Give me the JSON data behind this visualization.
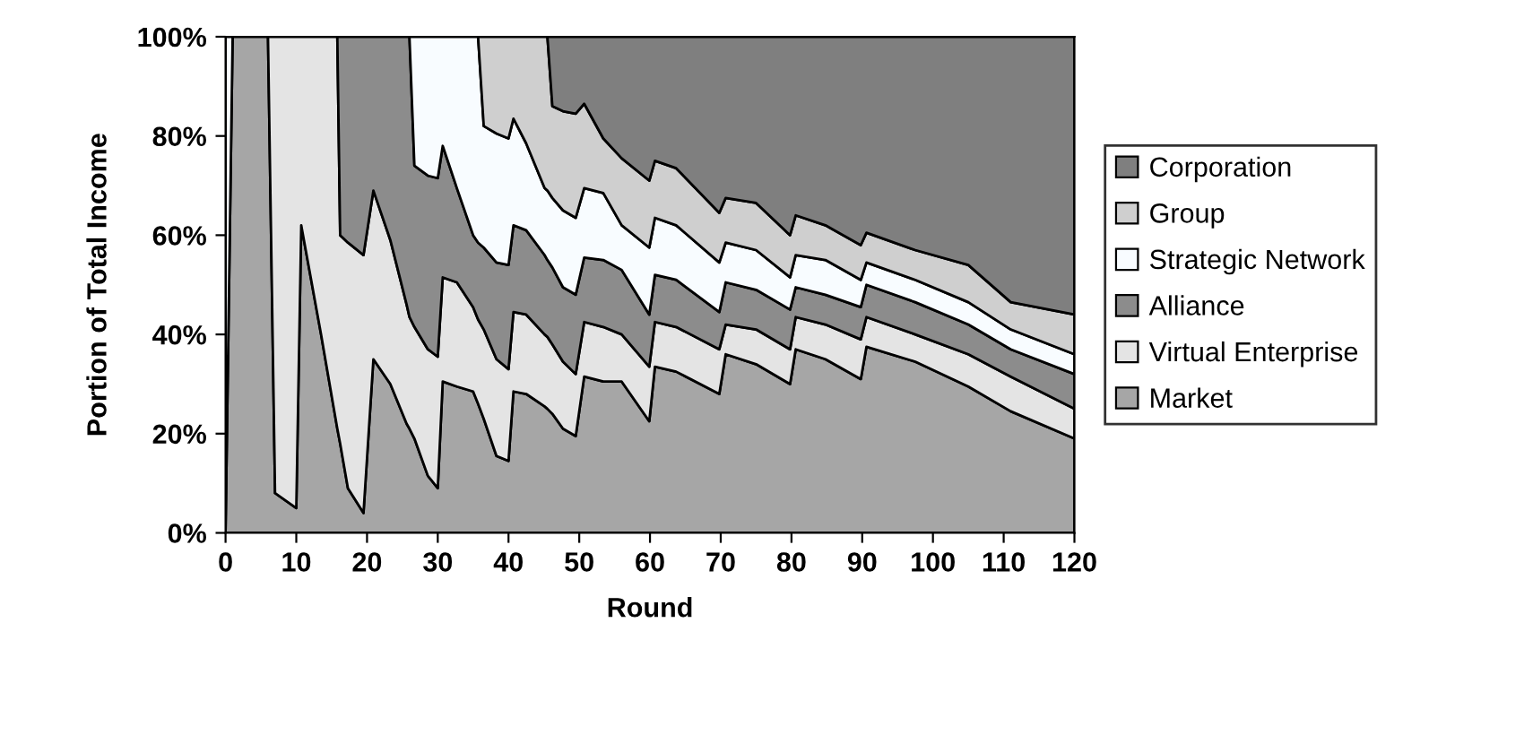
{
  "chart_data": {
    "type": "area",
    "stacked": true,
    "xlabel": "Round",
    "ylabel": "Portion of Total Income",
    "x": [
      0,
      1,
      6,
      7,
      10,
      10.7,
      13.5,
      15.8,
      16.2,
      17.3,
      19.5,
      20.9,
      23.3,
      25.6,
      26,
      26.7,
      28.6,
      30,
      30.7,
      32.7,
      35,
      35.7,
      36.5,
      38.3,
      40,
      40.7,
      42.5,
      45.1,
      45.5,
      46.2,
      47.7,
      49.5,
      50.7,
      53.4,
      56,
      59.9,
      60.7,
      63.7,
      69.8,
      70.7,
      75,
      79.8,
      80.6,
      84.8,
      89.8,
      90.6,
      97.5,
      105,
      111,
      120
    ],
    "xlim": [
      0,
      120
    ],
    "xticks": [
      0,
      10,
      20,
      30,
      40,
      50,
      60,
      70,
      80,
      90,
      100,
      110,
      120
    ],
    "ylim": [
      0,
      100
    ],
    "yticks": [
      {
        "value": 0,
        "label": "0%"
      },
      {
        "value": 20,
        "label": "20%"
      },
      {
        "value": 40,
        "label": "40%"
      },
      {
        "value": 60,
        "label": "60%"
      },
      {
        "value": 80,
        "label": "80%"
      },
      {
        "value": 100,
        "label": "100%"
      }
    ],
    "grid": false,
    "legend": "right",
    "series": [
      {
        "name": "Market",
        "color": "#a6a6a6",
        "values": [
          0,
          100,
          100,
          8,
          5,
          62,
          40,
          21,
          18,
          9,
          4,
          35,
          30,
          22,
          21,
          19,
          11.5,
          9,
          30.5,
          29.5,
          28.5,
          26,
          23,
          15.5,
          14.5,
          28.5,
          28,
          25.5,
          25,
          24,
          21,
          19.5,
          31.5,
          30.5,
          30.5,
          22.5,
          33.5,
          32.5,
          28,
          36,
          34,
          30,
          37,
          35,
          31,
          37.5,
          34.5,
          29.5,
          24.5,
          19
        ]
      },
      {
        "name": "Virtual Enterprise",
        "color": "#e4e4e4",
        "values": [
          null,
          null,
          0,
          92,
          95,
          38,
          60,
          79,
          42,
          49.5,
          52,
          34,
          29,
          24,
          22.5,
          22.5,
          25.5,
          26.5,
          21,
          21,
          17,
          17,
          18,
          19.5,
          18.5,
          16,
          16,
          14.5,
          14.5,
          14,
          13.5,
          12.5,
          11,
          11,
          9.5,
          11,
          9,
          9,
          9,
          6,
          7,
          7,
          6.5,
          7,
          8,
          6,
          5.5,
          6.5,
          7,
          6
        ]
      },
      {
        "name": "Alliance",
        "color": "#8c8c8c",
        "values": [
          null,
          null,
          null,
          null,
          null,
          null,
          null,
          0,
          40,
          41.5,
          44,
          31,
          41,
          54,
          56.5,
          32.5,
          35,
          36,
          26.5,
          19,
          14.5,
          15.5,
          16.5,
          19.5,
          21,
          17.5,
          17,
          16,
          15.5,
          15.5,
          15,
          16,
          13,
          13.5,
          13,
          10.5,
          9.5,
          9.5,
          7.5,
          8.5,
          8,
          8,
          6,
          6,
          6.5,
          6.5,
          6.5,
          6,
          5.5,
          7
        ]
      },
      {
        "name": "Strategic Network",
        "color": "#f8fcff",
        "values": [
          100,
          0,
          null,
          null,
          null,
          null,
          null,
          null,
          null,
          null,
          null,
          null,
          null,
          null,
          0,
          26,
          28,
          28.5,
          22,
          30.5,
          40,
          41.5,
          24.5,
          26,
          25.5,
          21.5,
          17.5,
          13.5,
          14,
          14,
          15.5,
          15.5,
          14,
          13.5,
          9,
          13.5,
          11.5,
          11,
          10,
          8,
          8,
          6.5,
          6.5,
          7,
          5.5,
          4.5,
          4.5,
          4.5,
          4,
          4
        ]
      },
      {
        "name": "Group",
        "color": "#cfcfcf",
        "values": [
          null,
          null,
          null,
          null,
          null,
          null,
          null,
          null,
          null,
          null,
          null,
          null,
          null,
          null,
          null,
          null,
          null,
          null,
          null,
          null,
          null,
          0,
          18,
          19.5,
          20.5,
          16.5,
          21.5,
          30.5,
          31,
          18.5,
          20,
          21,
          17,
          11,
          13.5,
          13.5,
          11.5,
          11.5,
          10,
          9,
          9.5,
          8.5,
          8,
          7,
          7,
          6,
          6,
          7.5,
          5.5,
          8
        ]
      },
      {
        "name": "Corporation",
        "color": "#7f7f7f",
        "values": [
          null,
          null,
          null,
          null,
          null,
          null,
          null,
          null,
          null,
          null,
          null,
          null,
          null,
          null,
          null,
          null,
          null,
          null,
          null,
          null,
          null,
          null,
          null,
          null,
          null,
          null,
          null,
          null,
          0,
          14,
          15,
          15.5,
          13.5,
          20.5,
          24.5,
          29,
          25,
          26.5,
          35.5,
          32.5,
          33.5,
          40,
          36,
          38,
          42,
          39.5,
          43,
          46,
          53.5,
          56
        ]
      }
    ]
  }
}
